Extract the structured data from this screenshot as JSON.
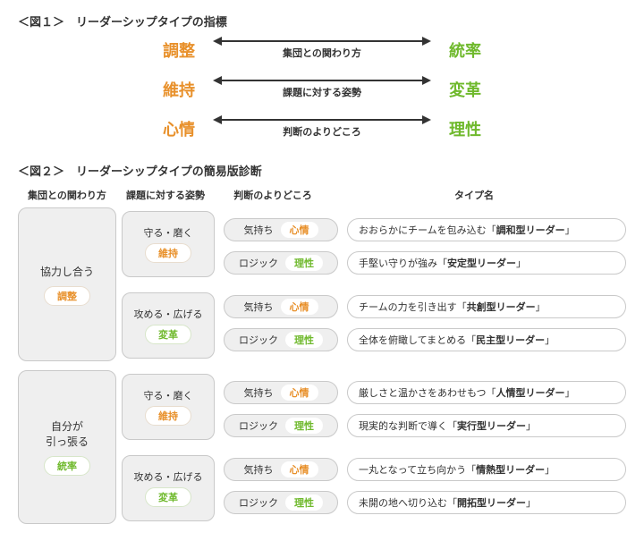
{
  "colors": {
    "orange": "#e8902a",
    "green": "#6fb92c",
    "text": "#333333",
    "box_bg": "#efefef",
    "box_border": "#c9c9c9",
    "page_bg": "#ffffff"
  },
  "fig1": {
    "title": "＜図１＞　リーダーシップタイプの指標",
    "axes": [
      {
        "left": "調整",
        "right": "統率",
        "caption": "集団との関わり方"
      },
      {
        "left": "維持",
        "right": "変革",
        "caption": "課題に対する姿勢"
      },
      {
        "left": "心情",
        "right": "理性",
        "caption": "判断のよりどころ"
      }
    ]
  },
  "fig2": {
    "title": "＜図２＞　リーダーシップタイプの簡易版診断",
    "headers": [
      "集団との関わり方",
      "課題に対する姿勢",
      "判断のよりどころ",
      "タイプ名"
    ],
    "level1": [
      {
        "label": "協力し合う",
        "pill": "調整",
        "pill_color": "orange"
      },
      {
        "label": "自分が\n引っ張る",
        "pill": "統率",
        "pill_color": "green"
      }
    ],
    "level2": [
      {
        "label": "守る・磨く",
        "pill": "維持",
        "pill_color": "orange"
      },
      {
        "label": "攻める・広げる",
        "pill": "変革",
        "pill_color": "green"
      },
      {
        "label": "守る・磨く",
        "pill": "維持",
        "pill_color": "orange"
      },
      {
        "label": "攻める・広げる",
        "pill": "変革",
        "pill_color": "green"
      }
    ],
    "level3": [
      {
        "label": "気持ち",
        "tag": "心情",
        "tag_color": "orange"
      },
      {
        "label": "ロジック",
        "tag": "理性",
        "tag_color": "green"
      },
      {
        "label": "気持ち",
        "tag": "心情",
        "tag_color": "orange"
      },
      {
        "label": "ロジック",
        "tag": "理性",
        "tag_color": "green"
      },
      {
        "label": "気持ち",
        "tag": "心情",
        "tag_color": "orange"
      },
      {
        "label": "ロジック",
        "tag": "理性",
        "tag_color": "green"
      },
      {
        "label": "気持ち",
        "tag": "心情",
        "tag_color": "orange"
      },
      {
        "label": "ロジック",
        "tag": "理性",
        "tag_color": "green"
      }
    ],
    "level4": [
      {
        "prefix": "おおらかにチームを包み込む「",
        "bold": "調和型リーダー",
        "suffix": "」"
      },
      {
        "prefix": "手堅い守りが強み「",
        "bold": "安定型リーダー",
        "suffix": "」"
      },
      {
        "prefix": "チームの力を引き出す「",
        "bold": "共創型リーダー",
        "suffix": "」"
      },
      {
        "prefix": "全体を俯瞰してまとめる「",
        "bold": "民主型リーダー",
        "suffix": "」"
      },
      {
        "prefix": "厳しさと温かさをあわせもつ「",
        "bold": "人情型リーダー",
        "suffix": "」"
      },
      {
        "prefix": "現実的な判断で導く「",
        "bold": "実行型リーダー",
        "suffix": "」"
      },
      {
        "prefix": "一丸となって立ち向かう「",
        "bold": "情熱型リーダー",
        "suffix": "」"
      },
      {
        "prefix": "未開の地へ切り込む「",
        "bold": "開拓型リーダー",
        "suffix": "」"
      }
    ]
  }
}
